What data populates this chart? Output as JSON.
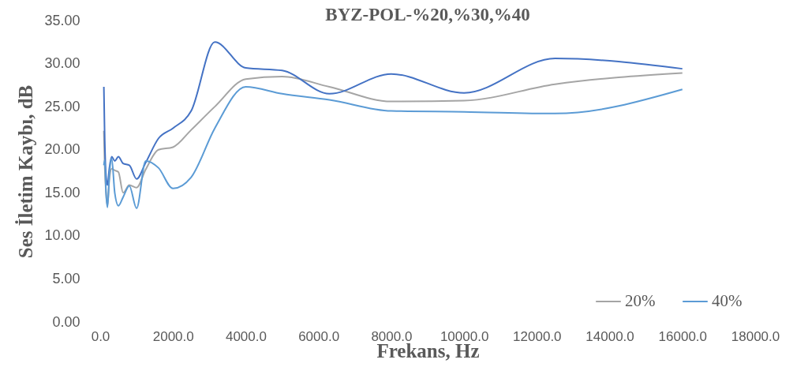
{
  "chart_data": {
    "type": "line",
    "title": "BYZ-POL-%20,%30,%40",
    "xlabel": "Frekans, Hz",
    "ylabel": "Ses  İletim Kaybı, dB",
    "x": [
      100,
      125,
      160,
      200,
      250,
      315,
      400,
      500,
      630,
      800,
      1000,
      1250,
      1600,
      2000,
      2500,
      3150,
      4000,
      5000,
      6300,
      8000,
      10000,
      12500,
      16000
    ],
    "series": [
      {
        "name": "20%",
        "color": "#a5a5a5",
        "values": [
          22.2,
          18.0,
          15.0,
          13.5,
          16.5,
          17.8,
          17.6,
          17.4,
          15.0,
          15.9,
          15.6,
          17.7,
          20.0,
          20.3,
          22.3,
          25.0,
          28.2,
          28.5,
          27.3,
          25.6,
          25.7,
          27.6,
          28.9
        ]
      },
      {
        "color": "#4472c4",
        "values": [
          27.3,
          21.0,
          17.0,
          15.9,
          17.8,
          19.2,
          18.7,
          19.2,
          18.4,
          18.2,
          16.6,
          18.5,
          21.3,
          22.5,
          24.5,
          32.5,
          29.5,
          29.2,
          26.5,
          28.8,
          26.6,
          30.6,
          29.4
        ]
      },
      {
        "name": "40%",
        "color": "#5b9bd5",
        "values": [
          18.2,
          18.8,
          15.0,
          13.3,
          17.0,
          19.0,
          15.0,
          13.5,
          14.5,
          15.8,
          13.2,
          18.7,
          17.9,
          15.5,
          16.8,
          22.5,
          27.3,
          26.5,
          25.8,
          24.5,
          24.4,
          24.2,
          27.0
        ]
      }
    ],
    "xlim": [
      0,
      18000
    ],
    "xticks": [
      {
        "value": 0,
        "label": "0.0"
      },
      {
        "value": 2000,
        "label": "2000.0"
      },
      {
        "value": 4000,
        "label": "4000.0"
      },
      {
        "value": 6000,
        "label": "6000.0"
      },
      {
        "value": 8000,
        "label": "8000.0"
      },
      {
        "value": 10000,
        "label": "10000.0"
      },
      {
        "value": 12000,
        "label": "12000.0"
      },
      {
        "value": 14000,
        "label": "14000.0"
      },
      {
        "value": 16000,
        "label": "16000.0"
      },
      {
        "value": 18000,
        "label": "18000.0"
      }
    ],
    "ylim": [
      0,
      35
    ],
    "yticks": [
      {
        "value": 0,
        "label": "0.00"
      },
      {
        "value": 5,
        "label": "5.00"
      },
      {
        "value": 10,
        "label": "10.00"
      },
      {
        "value": 15,
        "label": "15.00"
      },
      {
        "value": 20,
        "label": "20.00"
      },
      {
        "value": 25,
        "label": "25.00"
      },
      {
        "value": 30,
        "label": "30.00"
      },
      {
        "value": 35,
        "label": "35.00"
      }
    ],
    "grid": false,
    "legend": "bottom right",
    "marker": "none",
    "line_style": "solid"
  }
}
